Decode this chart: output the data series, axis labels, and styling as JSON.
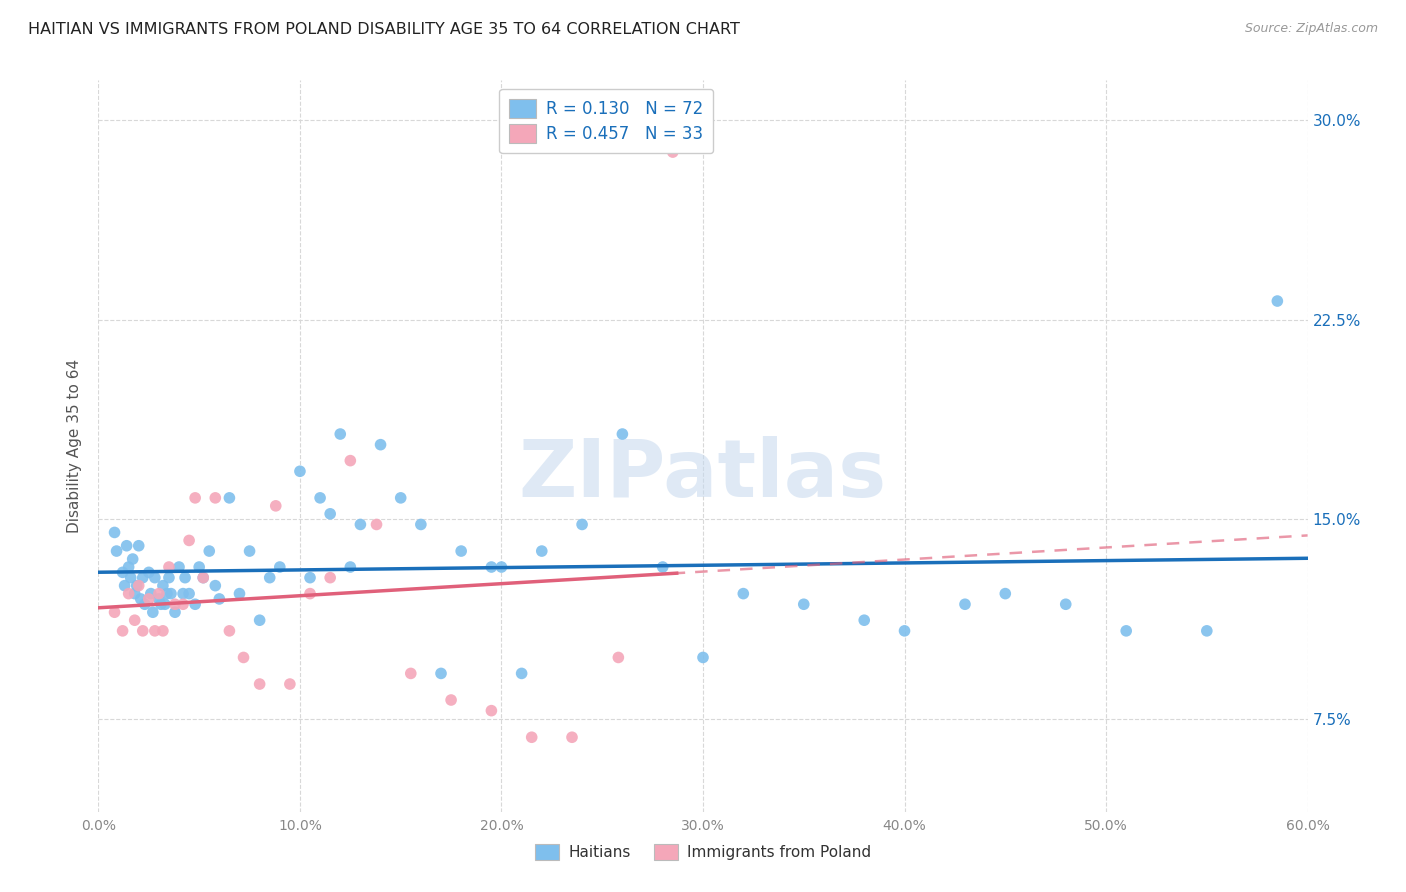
{
  "title": "HAITIAN VS IMMIGRANTS FROM POLAND DISABILITY AGE 35 TO 64 CORRELATION CHART",
  "source": "Source: ZipAtlas.com",
  "ylabel_label": "Disability Age 35 to 64",
  "watermark": "ZIPatlas",
  "xlim": [
    0.0,
    0.6
  ],
  "ylim": [
    0.04,
    0.315
  ],
  "xticks": [
    0.0,
    0.1,
    0.2,
    0.3,
    0.4,
    0.5,
    0.6
  ],
  "yticks": [
    0.075,
    0.15,
    0.225,
    0.3
  ],
  "ytick_labels": [
    "7.5%",
    "15.0%",
    "22.5%",
    "30.0%"
  ],
  "xtick_labels": [
    "0.0%",
    "10.0%",
    "20.0%",
    "30.0%",
    "40.0%",
    "50.0%",
    "60.0%"
  ],
  "legend_label1": "R = 0.130   N = 72",
  "legend_label2": "R = 0.457   N = 33",
  "legend_series1": "Haitians",
  "legend_series2": "Immigrants from Poland",
  "color1": "#7fbfed",
  "color2": "#f4a7b9",
  "line_color1": "#1a6fba",
  "line_color2": "#e0607a",
  "background_color": "#ffffff",
  "grid_color": "#d8d8d8",
  "title_color": "#222222",
  "scatter1_x": [
    0.008,
    0.009,
    0.012,
    0.013,
    0.014,
    0.015,
    0.016,
    0.017,
    0.018,
    0.019,
    0.02,
    0.021,
    0.022,
    0.023,
    0.025,
    0.026,
    0.027,
    0.028,
    0.03,
    0.031,
    0.032,
    0.033,
    0.034,
    0.035,
    0.036,
    0.038,
    0.04,
    0.042,
    0.043,
    0.045,
    0.048,
    0.05,
    0.052,
    0.055,
    0.058,
    0.06,
    0.065,
    0.07,
    0.075,
    0.08,
    0.085,
    0.09,
    0.1,
    0.105,
    0.11,
    0.115,
    0.12,
    0.125,
    0.13,
    0.14,
    0.15,
    0.16,
    0.17,
    0.18,
    0.195,
    0.2,
    0.21,
    0.22,
    0.24,
    0.26,
    0.28,
    0.3,
    0.32,
    0.35,
    0.38,
    0.4,
    0.43,
    0.45,
    0.48,
    0.51,
    0.55,
    0.585
  ],
  "scatter1_y": [
    0.145,
    0.138,
    0.13,
    0.125,
    0.14,
    0.132,
    0.128,
    0.135,
    0.122,
    0.125,
    0.14,
    0.12,
    0.128,
    0.118,
    0.13,
    0.122,
    0.115,
    0.128,
    0.12,
    0.118,
    0.125,
    0.118,
    0.122,
    0.128,
    0.122,
    0.115,
    0.132,
    0.122,
    0.128,
    0.122,
    0.118,
    0.132,
    0.128,
    0.138,
    0.125,
    0.12,
    0.158,
    0.122,
    0.138,
    0.112,
    0.128,
    0.132,
    0.168,
    0.128,
    0.158,
    0.152,
    0.182,
    0.132,
    0.148,
    0.178,
    0.158,
    0.148,
    0.092,
    0.138,
    0.132,
    0.132,
    0.092,
    0.138,
    0.148,
    0.182,
    0.132,
    0.098,
    0.122,
    0.118,
    0.112,
    0.108,
    0.118,
    0.122,
    0.118,
    0.108,
    0.108,
    0.232
  ],
  "scatter2_x": [
    0.008,
    0.012,
    0.015,
    0.018,
    0.02,
    0.022,
    0.025,
    0.028,
    0.03,
    0.032,
    0.035,
    0.038,
    0.042,
    0.045,
    0.048,
    0.052,
    0.058,
    0.065,
    0.072,
    0.08,
    0.088,
    0.095,
    0.105,
    0.115,
    0.125,
    0.138,
    0.155,
    0.175,
    0.195,
    0.215,
    0.235,
    0.258,
    0.285
  ],
  "scatter2_y": [
    0.115,
    0.108,
    0.122,
    0.112,
    0.125,
    0.108,
    0.12,
    0.108,
    0.122,
    0.108,
    0.132,
    0.118,
    0.118,
    0.142,
    0.158,
    0.128,
    0.158,
    0.108,
    0.098,
    0.088,
    0.155,
    0.088,
    0.122,
    0.128,
    0.172,
    0.148,
    0.092,
    0.082,
    0.078,
    0.068,
    0.068,
    0.098,
    0.288
  ]
}
